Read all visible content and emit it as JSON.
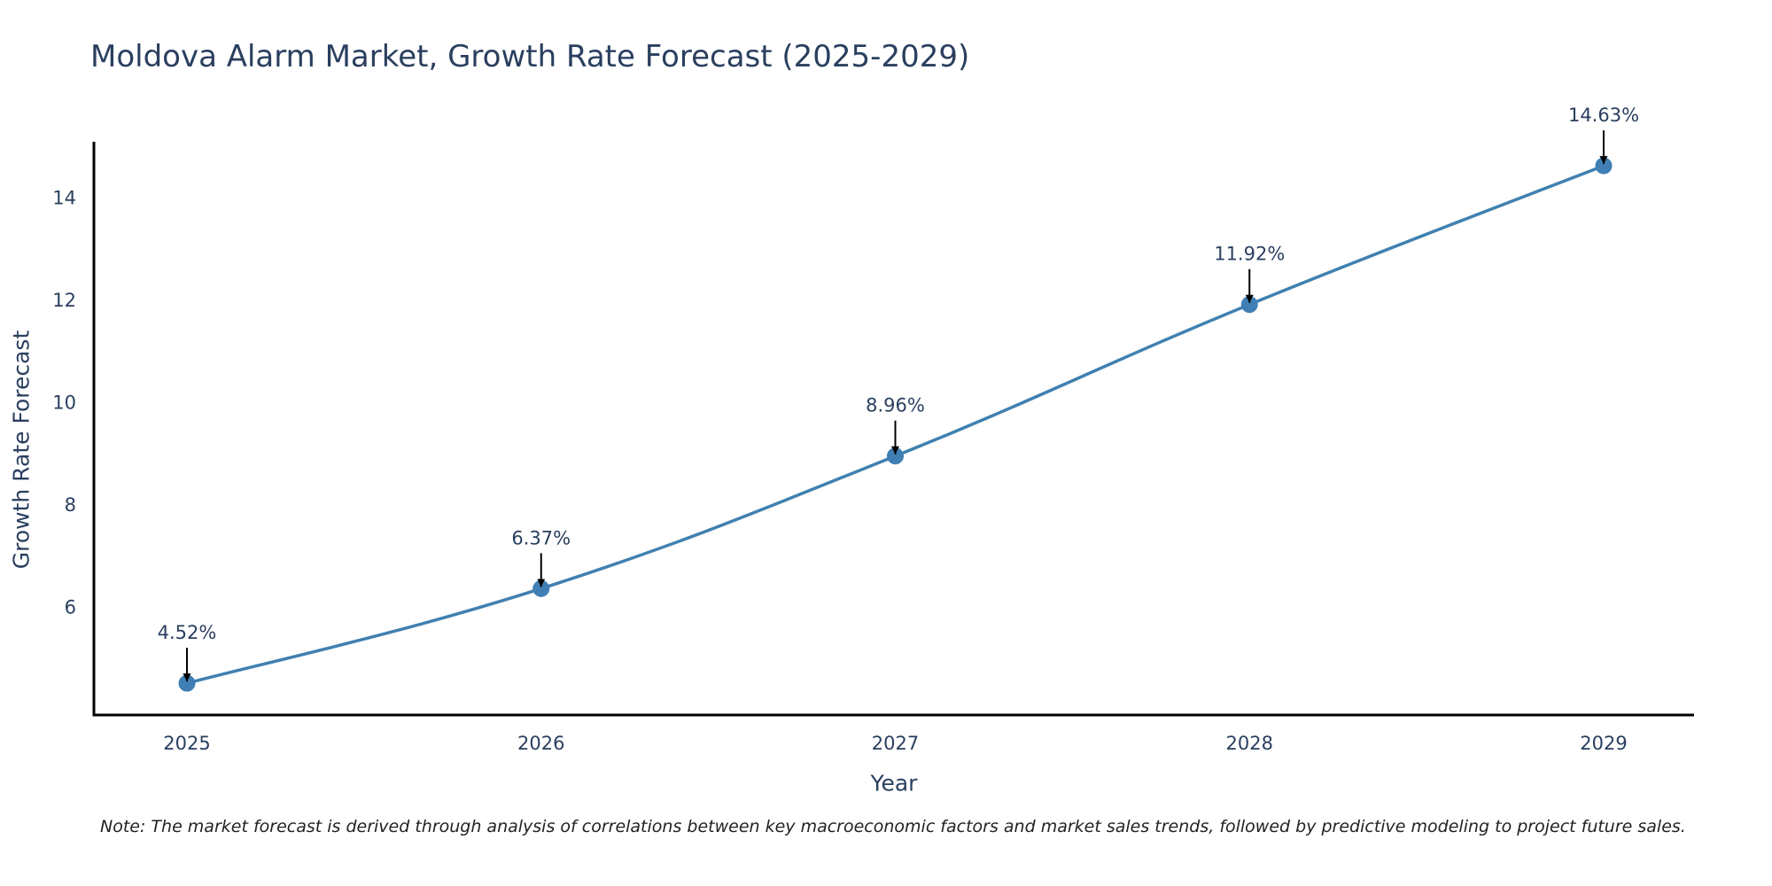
{
  "chart_data": {
    "type": "line",
    "title": "Moldova Alarm Market, Growth Rate Forecast (2025-2029)",
    "xlabel": "Year",
    "ylabel": "Growth Rate Forecast",
    "categories": [
      "2025",
      "2026",
      "2027",
      "2028",
      "2029"
    ],
    "series": [
      {
        "name": "Growth Rate Forecast",
        "values": [
          4.52,
          6.37,
          8.96,
          11.92,
          14.63
        ],
        "labels": [
          "4.52%",
          "6.37%",
          "8.96%",
          "11.92%",
          "14.63%"
        ]
      }
    ],
    "yticks": [
      6,
      8,
      10,
      12,
      14
    ],
    "ylim": [
      3.9,
      15.1
    ],
    "grid": false,
    "line_color": "#4080b0",
    "marker_color": "#3f7fb4"
  },
  "footer": {
    "note": "Note: The market forecast is derived through analysis of correlations between key macroeconomic factors and market sales trends, followed by predictive modeling to project future sales."
  }
}
